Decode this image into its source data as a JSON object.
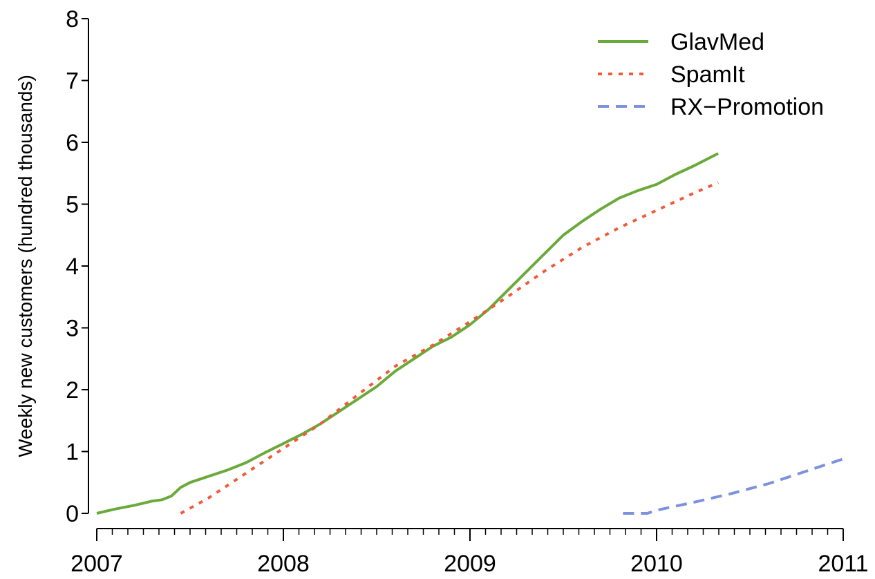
{
  "chart_data": {
    "type": "line",
    "title": "",
    "xlabel": "",
    "ylabel": "Weekly new customers (hundred thousands)",
    "xlim": [
      2007,
      2011
    ],
    "ylim": [
      0,
      8
    ],
    "x_ticks": [
      "2007",
      "2008",
      "2009",
      "2010",
      "2011"
    ],
    "y_ticks": [
      "0",
      "1",
      "2",
      "3",
      "4",
      "5",
      "6",
      "7",
      "8"
    ],
    "grid": false,
    "legend_position": "top-right",
    "series": [
      {
        "name": "GlavMed",
        "color": "#6aaa3a",
        "style": "solid",
        "x": [
          2007.0,
          2007.1,
          2007.2,
          2007.3,
          2007.35,
          2007.4,
          2007.45,
          2007.5,
          2007.6,
          2007.7,
          2007.8,
          2007.9,
          2008.0,
          2008.1,
          2008.2,
          2008.3,
          2008.4,
          2008.5,
          2008.6,
          2008.7,
          2008.8,
          2008.9,
          2009.0,
          2009.1,
          2009.2,
          2009.3,
          2009.4,
          2009.5,
          2009.6,
          2009.7,
          2009.8,
          2009.9,
          2010.0,
          2010.1,
          2010.2,
          2010.33
        ],
        "y": [
          0.0,
          0.07,
          0.13,
          0.2,
          0.22,
          0.28,
          0.42,
          0.5,
          0.6,
          0.7,
          0.82,
          0.98,
          1.13,
          1.28,
          1.45,
          1.65,
          1.85,
          2.05,
          2.3,
          2.5,
          2.7,
          2.85,
          3.05,
          3.3,
          3.6,
          3.9,
          4.2,
          4.5,
          4.72,
          4.92,
          5.1,
          5.22,
          5.32,
          5.48,
          5.62,
          5.82
        ]
      },
      {
        "name": "SpamIt",
        "color": "#f15a3a",
        "style": "dotted",
        "x": [
          2007.45,
          2007.6,
          2007.8,
          2008.0,
          2008.2,
          2008.4,
          2008.6,
          2008.8,
          2009.0,
          2009.2,
          2009.4,
          2009.6,
          2009.8,
          2010.0,
          2010.2,
          2010.33
        ],
        "y": [
          0.0,
          0.25,
          0.65,
          1.05,
          1.45,
          1.92,
          2.38,
          2.72,
          3.1,
          3.5,
          3.92,
          4.3,
          4.62,
          4.9,
          5.18,
          5.35
        ]
      },
      {
        "name": "RX−Promotion",
        "color": "#7b92dc",
        "style": "dashed",
        "x": [
          2009.82,
          2009.95,
          2010.0,
          2010.2,
          2010.4,
          2010.6,
          2010.8,
          2011.0
        ],
        "y": [
          0.0,
          0.0,
          0.05,
          0.18,
          0.32,
          0.48,
          0.68,
          0.88
        ]
      }
    ]
  }
}
